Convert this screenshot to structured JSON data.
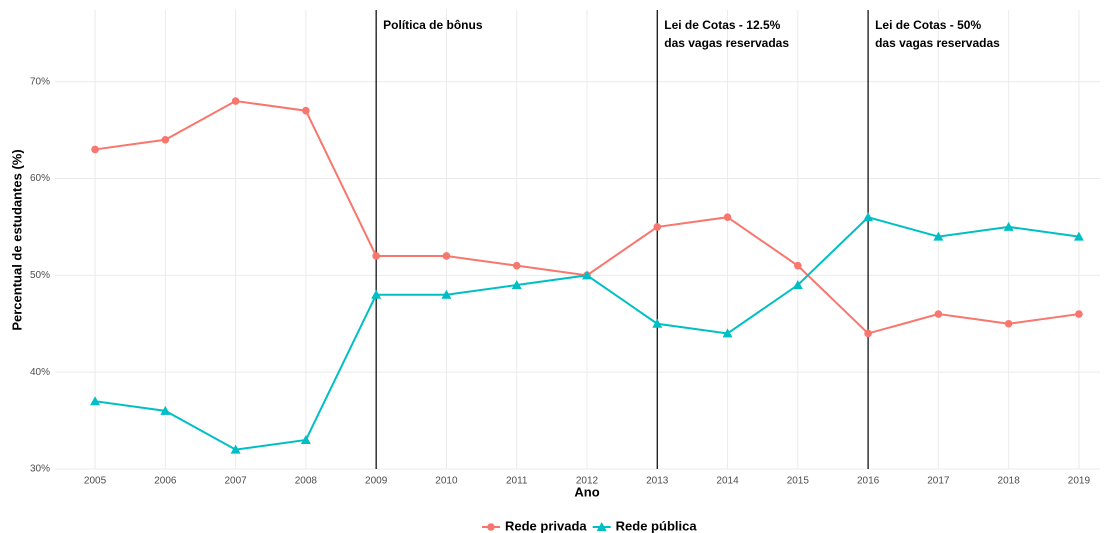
{
  "chart_data": {
    "type": "line",
    "x_label": "Ano",
    "y_label": "Percentual de estudantes (%)",
    "x": [
      2005,
      2006,
      2007,
      2008,
      2009,
      2010,
      2011,
      2012,
      2013,
      2014,
      2015,
      2016,
      2017,
      2018,
      2019
    ],
    "xlim": [
      2004.43,
      2019.3
    ],
    "xticks": [
      2005,
      2006,
      2007,
      2008,
      2009,
      2010,
      2011,
      2012,
      2013,
      2014,
      2015,
      2016,
      2017,
      2018,
      2019
    ],
    "ylim": [
      30,
      77.4
    ],
    "yticks": [
      {
        "value": 30,
        "label": "30%"
      },
      {
        "value": 40,
        "label": "40%"
      },
      {
        "value": 50,
        "label": "50%"
      },
      {
        "value": 60,
        "label": "60%"
      },
      {
        "value": 70,
        "label": "70%"
      }
    ],
    "grid": true,
    "legend_position": "bottom",
    "series": [
      {
        "name": "Rede privada",
        "color": "#F8766D",
        "marker": "circle",
        "values": [
          63,
          64,
          68,
          67,
          52,
          52,
          51,
          50,
          55,
          56,
          51,
          44,
          46,
          45,
          46
        ]
      },
      {
        "name": "Rede pública",
        "color": "#00BFC4",
        "marker": "triangle",
        "values": [
          37,
          36,
          32,
          33,
          48,
          48,
          49,
          50,
          45,
          44,
          49,
          56,
          54,
          55,
          54
        ]
      }
    ],
    "annotations": [
      {
        "x": 2009,
        "lines": [
          "Política de bônus"
        ]
      },
      {
        "x": 2013,
        "lines": [
          "Lei de Cotas - 12.5%",
          "das vagas reservadas"
        ]
      },
      {
        "x": 2016,
        "lines": [
          "Lei de Cotas - 50%",
          "das vagas reservadas"
        ]
      }
    ]
  }
}
